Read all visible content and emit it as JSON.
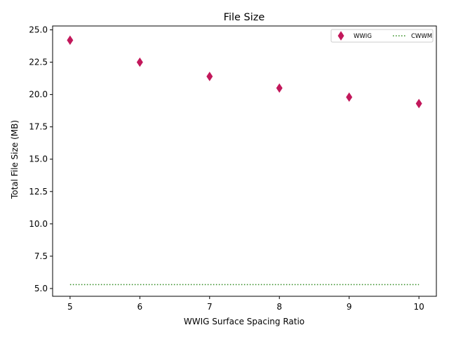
{
  "chart_data": {
    "type": "scatter",
    "title": "File Size",
    "xlabel": "WWIG Surface Spacing Ratio",
    "ylabel": "Total File Size (MB)",
    "xlim": [
      4.75,
      10.25
    ],
    "ylim": [
      4.4,
      25.3
    ],
    "xticks": [
      5,
      6,
      7,
      8,
      9,
      10
    ],
    "xtick_labels": [
      "5",
      "6",
      "7",
      "8",
      "9",
      "10"
    ],
    "yticks": [
      5.0,
      7.5,
      10.0,
      12.5,
      15.0,
      17.5,
      20.0,
      22.5,
      25.0
    ],
    "ytick_labels": [
      "5.0",
      "7.5",
      "10.0",
      "12.5",
      "15.0",
      "17.5",
      "20.0",
      "22.5",
      "25.0"
    ],
    "grid": false,
    "legend_position": "top-right",
    "series": [
      {
        "name": "WWIG",
        "kind": "markers",
        "marker": "thin-diamond",
        "color": "#c2185b",
        "x": [
          5,
          6,
          7,
          8,
          9,
          10
        ],
        "y": [
          24.2,
          22.5,
          21.4,
          20.5,
          19.8,
          19.3
        ]
      },
      {
        "name": "CWWM",
        "kind": "line",
        "linestyle": "dotted",
        "color": "#2e8b1e",
        "x": [
          5,
          10
        ],
        "y": [
          5.3,
          5.3
        ]
      }
    ]
  }
}
